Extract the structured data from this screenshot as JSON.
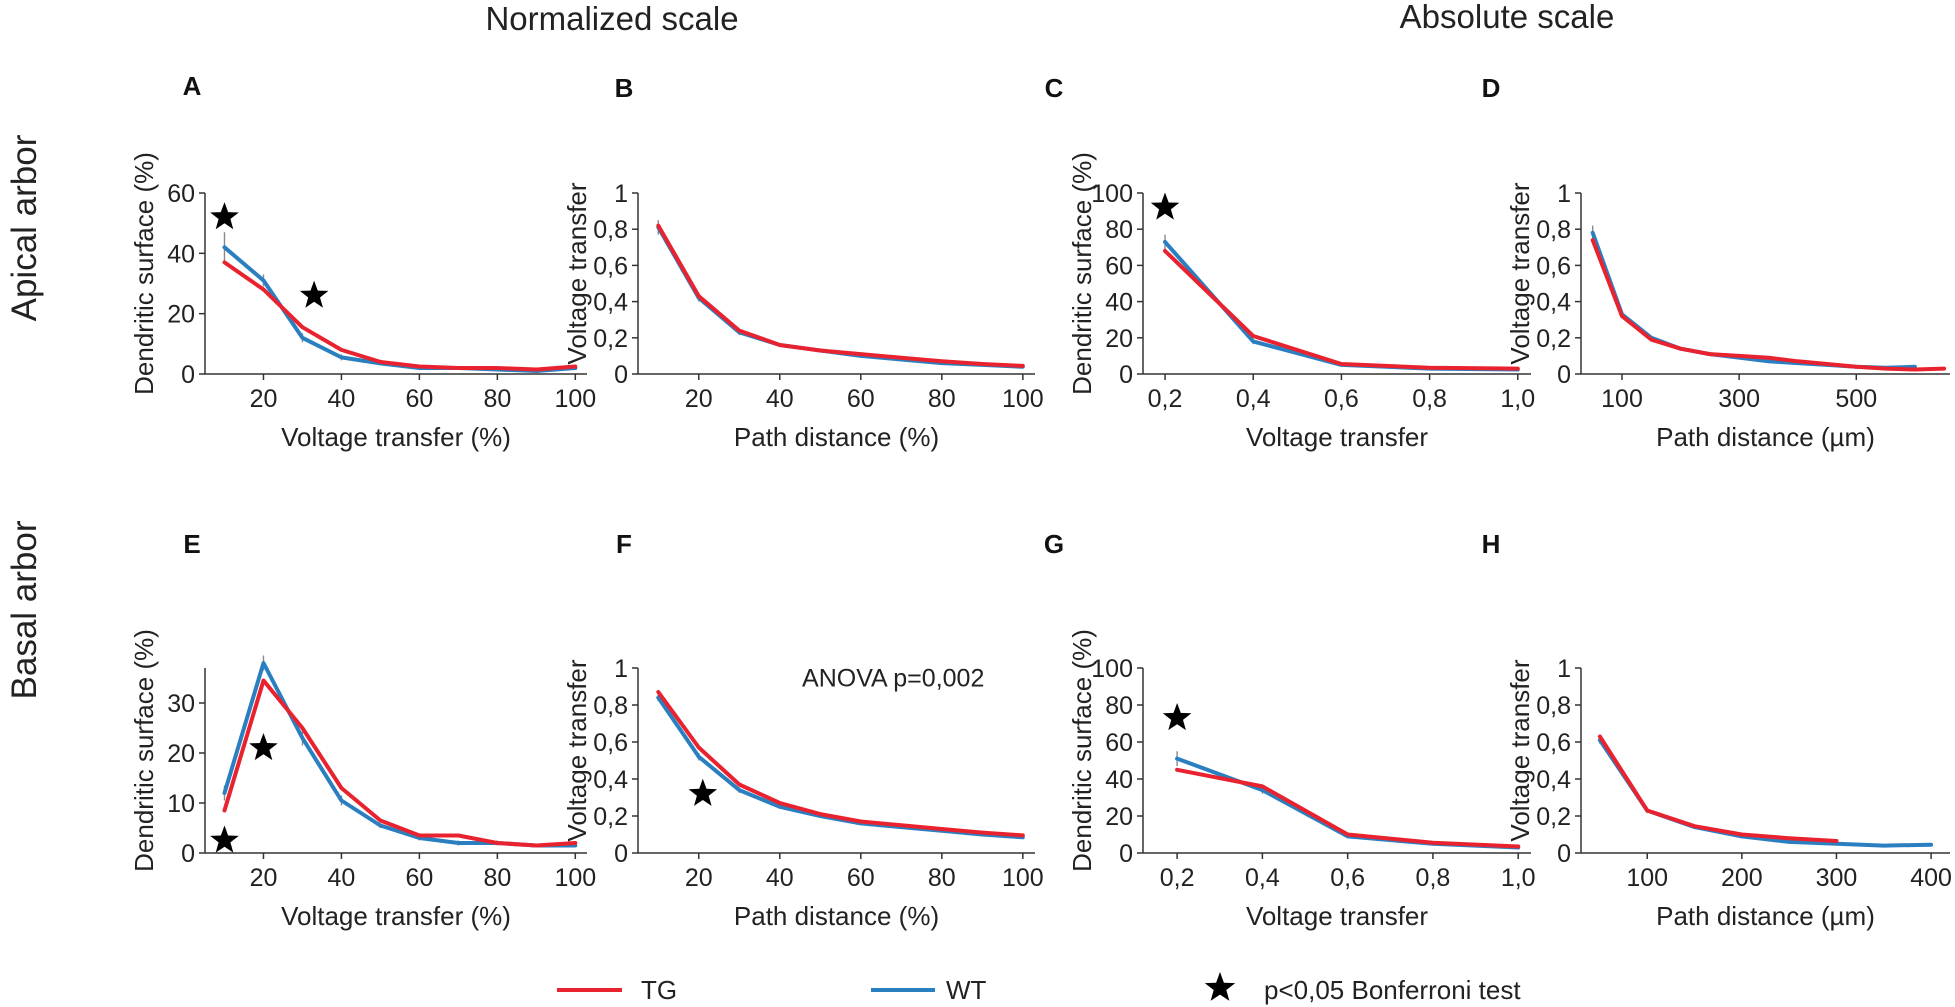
{
  "figure": {
    "column_headers": [
      "Normalized scale",
      "Absolute scale"
    ],
    "row_labels": [
      "Apical arbor",
      "Basal arbor"
    ],
    "legend": {
      "tg_label": "TG",
      "wt_label": "WT",
      "star_label": "p<0,05 Bonferroni test"
    },
    "colors": {
      "TG": "#e8232f",
      "WT": "#2a7fc1",
      "axis": "#333333",
      "star": "#000000"
    }
  },
  "chart_data": [
    {
      "id": "A",
      "type": "line",
      "title": "",
      "xlabel": "Voltage transfer (%)",
      "ylabel": "Dendritic surface (%)",
      "xlim": [
        5,
        103
      ],
      "ylim": [
        0,
        60
      ],
      "xticks": [
        20,
        40,
        60,
        80,
        100
      ],
      "xtick_labels": [
        "20",
        "40",
        "60",
        "80",
        "100"
      ],
      "yticks": [
        0,
        20,
        40,
        60
      ],
      "ytick_labels": [
        "0",
        "20",
        "40",
        "60"
      ],
      "x": [
        10,
        20,
        30,
        40,
        50,
        60,
        70,
        80,
        90,
        100
      ],
      "series": [
        {
          "name": "WT",
          "values": [
            42,
            31,
            12,
            5.5,
            3.5,
            2,
            2,
            1.5,
            1,
            2
          ]
        },
        {
          "name": "TG",
          "values": [
            37,
            28,
            15.5,
            8,
            4,
            2.5,
            2,
            2,
            1.5,
            2.5
          ]
        }
      ],
      "error": [
        5,
        2,
        1.5,
        1,
        0.5,
        0.5,
        0.5,
        0.5,
        0.5,
        0.5
      ],
      "stars": [
        {
          "x": 10,
          "y": 52
        },
        {
          "x": 33,
          "y": 26
        }
      ],
      "annotations": []
    },
    {
      "id": "B",
      "type": "line",
      "title": "",
      "xlabel": "Path distance (%)",
      "ylabel": "Voltage transfer",
      "xlim": [
        5,
        103
      ],
      "ylim": [
        0,
        1
      ],
      "xticks": [
        20,
        40,
        60,
        80,
        100
      ],
      "xtick_labels": [
        "20",
        "40",
        "60",
        "80",
        "100"
      ],
      "yticks": [
        0,
        0.2,
        0.4,
        0.6,
        0.8,
        1
      ],
      "ytick_labels": [
        "0",
        "0,2",
        "0,4",
        "0,6",
        "0,8",
        "1"
      ],
      "x": [
        10,
        20,
        30,
        40,
        50,
        60,
        70,
        80,
        90,
        100
      ],
      "series": [
        {
          "name": "WT",
          "values": [
            0.81,
            0.42,
            0.23,
            0.16,
            0.13,
            0.1,
            0.08,
            0.06,
            0.05,
            0.04
          ]
        },
        {
          "name": "TG",
          "values": [
            0.82,
            0.43,
            0.24,
            0.16,
            0.13,
            0.11,
            0.09,
            0.07,
            0.055,
            0.045
          ]
        }
      ],
      "error": [
        0.04,
        0.02,
        0.015,
        0.01,
        0.01,
        0.01,
        0.005,
        0.005,
        0.005,
        0.005
      ],
      "stars": [],
      "annotations": []
    },
    {
      "id": "C",
      "type": "line",
      "title": "",
      "xlabel": "Voltage transfer",
      "ylabel": "Dendritic surface (%)",
      "xlim": [
        0.15,
        1.03
      ],
      "ylim": [
        0,
        100
      ],
      "xticks": [
        0.2,
        0.4,
        0.6,
        0.8,
        1.0
      ],
      "xtick_labels": [
        "0,2",
        "0,4",
        "0,6",
        "0,8",
        "1,0"
      ],
      "yticks": [
        0,
        20,
        40,
        60,
        80,
        100
      ],
      "ytick_labels": [
        "0",
        "20",
        "40",
        "60",
        "80",
        "100"
      ],
      "x": [
        0.2,
        0.4,
        0.6,
        0.8,
        1.0
      ],
      "series": [
        {
          "name": "WT",
          "values": [
            73,
            18,
            5,
            3,
            2.5
          ]
        },
        {
          "name": "TG",
          "values": [
            68,
            21,
            5.5,
            3.5,
            3
          ]
        }
      ],
      "error": [
        4,
        1.5,
        0.5,
        0.5,
        0.5
      ],
      "stars": [
        {
          "x": 0.2,
          "y": 92
        }
      ],
      "annotations": []
    },
    {
      "id": "D",
      "type": "line",
      "title": "",
      "xlabel": "Path distance (µm)",
      "ylabel": "Voltage transfer",
      "xlim": [
        30,
        660
      ],
      "ylim": [
        0,
        1
      ],
      "xticks": [
        100,
        300,
        500
      ],
      "xtick_labels": [
        "100",
        "300",
        "500"
      ],
      "yticks": [
        0,
        0.2,
        0.4,
        0.6,
        0.8,
        1
      ],
      "ytick_labels": [
        "0",
        "0,2",
        "0,4",
        "0,6",
        "0,8",
        "1"
      ],
      "series": [
        {
          "name": "WT",
          "x": [
            50,
            100,
            150,
            200,
            250,
            300,
            350,
            400,
            450,
            500,
            550,
            600
          ],
          "values": [
            0.78,
            0.33,
            0.2,
            0.14,
            0.11,
            0.09,
            0.07,
            0.06,
            0.05,
            0.04,
            0.035,
            0.04
          ]
        },
        {
          "name": "TG",
          "x": [
            50,
            100,
            150,
            200,
            250,
            300,
            350,
            400,
            450,
            500,
            550,
            600,
            650
          ],
          "values": [
            0.74,
            0.32,
            0.19,
            0.14,
            0.11,
            0.1,
            0.09,
            0.07,
            0.055,
            0.04,
            0.03,
            0.025,
            0.03
          ]
        }
      ],
      "error": [
        0.04,
        0.02,
        0.01,
        0.01,
        0.01,
        0.01,
        0.01,
        0.01,
        0.005,
        0.005,
        0.005,
        0.005
      ],
      "stars": [],
      "annotations": []
    },
    {
      "id": "E",
      "type": "line",
      "title": "",
      "xlabel": "Voltage transfer (%)",
      "ylabel": "Dendritic surface (%)",
      "xlim": [
        5,
        103
      ],
      "ylim": [
        0,
        37
      ],
      "xticks": [
        20,
        40,
        60,
        80,
        100
      ],
      "xtick_labels": [
        "20",
        "40",
        "60",
        "80",
        "100"
      ],
      "yticks": [
        0,
        10,
        20,
        30
      ],
      "ytick_labels": [
        "0",
        "10",
        "20",
        "30"
      ],
      "x": [
        10,
        20,
        30,
        40,
        50,
        60,
        70,
        80,
        90,
        100
      ],
      "series": [
        {
          "name": "WT",
          "values": [
            12,
            38,
            23,
            10.5,
            5.5,
            3,
            2,
            2,
            1.5,
            1.5
          ]
        },
        {
          "name": "TG",
          "values": [
            8.5,
            34.5,
            25,
            13,
            6.5,
            3.5,
            3.5,
            2,
            1.5,
            2
          ]
        }
      ],
      "error": [
        1.5,
        1.5,
        1.5,
        1,
        0.5,
        0.5,
        0.5,
        0.5,
        0.3,
        0.3
      ],
      "stars": [
        {
          "x": 10,
          "y": 2.5
        },
        {
          "x": 20,
          "y": 21
        }
      ],
      "annotations": []
    },
    {
      "id": "F",
      "type": "line",
      "title": "",
      "xlabel": "Path distance (%)",
      "ylabel": "Voltage transfer",
      "xlim": [
        5,
        103
      ],
      "ylim": [
        0,
        1
      ],
      "xticks": [
        20,
        40,
        60,
        80,
        100
      ],
      "xtick_labels": [
        "20",
        "40",
        "60",
        "80",
        "100"
      ],
      "yticks": [
        0,
        0.2,
        0.4,
        0.6,
        0.8,
        1
      ],
      "ytick_labels": [
        "0",
        "0,2",
        "0,4",
        "0,6",
        "0,8",
        "1"
      ],
      "x": [
        10,
        20,
        30,
        40,
        50,
        60,
        70,
        80,
        90,
        100
      ],
      "series": [
        {
          "name": "WT",
          "values": [
            0.84,
            0.52,
            0.34,
            0.25,
            0.2,
            0.16,
            0.14,
            0.12,
            0.1,
            0.085
          ]
        },
        {
          "name": "TG",
          "values": [
            0.87,
            0.57,
            0.37,
            0.27,
            0.21,
            0.17,
            0.15,
            0.13,
            0.11,
            0.095
          ]
        }
      ],
      "error": [
        0.02,
        0.02,
        0.015,
        0.01,
        0.01,
        0.01,
        0.005,
        0.005,
        0.005,
        0.005
      ],
      "stars": [
        {
          "x": 21,
          "y": 0.32
        }
      ],
      "annotations": [
        {
          "text": "ANOVA p=0,002",
          "x": 68,
          "y": 0.95
        }
      ]
    },
    {
      "id": "G",
      "type": "line",
      "title": "",
      "xlabel": "Voltage transfer",
      "ylabel": "Dendritic surface (%)",
      "xlim": [
        0.12,
        1.03
      ],
      "ylim": [
        0,
        100
      ],
      "xticks": [
        0.2,
        0.4,
        0.6,
        0.8,
        1.0
      ],
      "xtick_labels": [
        "0,2",
        "0,4",
        "0,6",
        "0,8",
        "1,0"
      ],
      "yticks": [
        0,
        20,
        40,
        60,
        80,
        100
      ],
      "ytick_labels": [
        "0",
        "20",
        "40",
        "60",
        "80",
        "100"
      ],
      "x": [
        0.2,
        0.4,
        0.6,
        0.8,
        1.0
      ],
      "series": [
        {
          "name": "WT",
          "values": [
            51,
            34,
            9,
            5,
            3
          ]
        },
        {
          "name": "TG",
          "values": [
            45,
            36,
            10,
            5.5,
            3.5
          ]
        }
      ],
      "error": [
        4,
        2,
        1,
        0.5,
        0.5
      ],
      "stars": [
        {
          "x": 0.2,
          "y": 73
        }
      ],
      "annotations": []
    },
    {
      "id": "H",
      "type": "line",
      "title": "",
      "xlabel": "Path distance (µm)",
      "ylabel": "Voltage transfer",
      "xlim": [
        30,
        420
      ],
      "ylim": [
        0,
        1
      ],
      "xticks": [
        100,
        200,
        300,
        400
      ],
      "xtick_labels": [
        "100",
        "200",
        "300",
        "400"
      ],
      "yticks": [
        0,
        0.2,
        0.4,
        0.6,
        0.8,
        1
      ],
      "ytick_labels": [
        "0",
        "0,2",
        "0,4",
        "0,6",
        "0,8",
        "1"
      ],
      "series": [
        {
          "name": "WT",
          "x": [
            50,
            100,
            150,
            200,
            250,
            300,
            350,
            400
          ],
          "values": [
            0.61,
            0.23,
            0.14,
            0.09,
            0.06,
            0.05,
            0.04,
            0.045
          ]
        },
        {
          "name": "TG",
          "x": [
            50,
            100,
            150,
            200,
            250,
            300
          ],
          "values": [
            0.63,
            0.23,
            0.145,
            0.1,
            0.08,
            0.065
          ]
        }
      ],
      "error": [
        0.02,
        0.015,
        0.01,
        0.01,
        0.005,
        0.005,
        0.005,
        0.005
      ],
      "stars": [],
      "annotations": []
    }
  ]
}
